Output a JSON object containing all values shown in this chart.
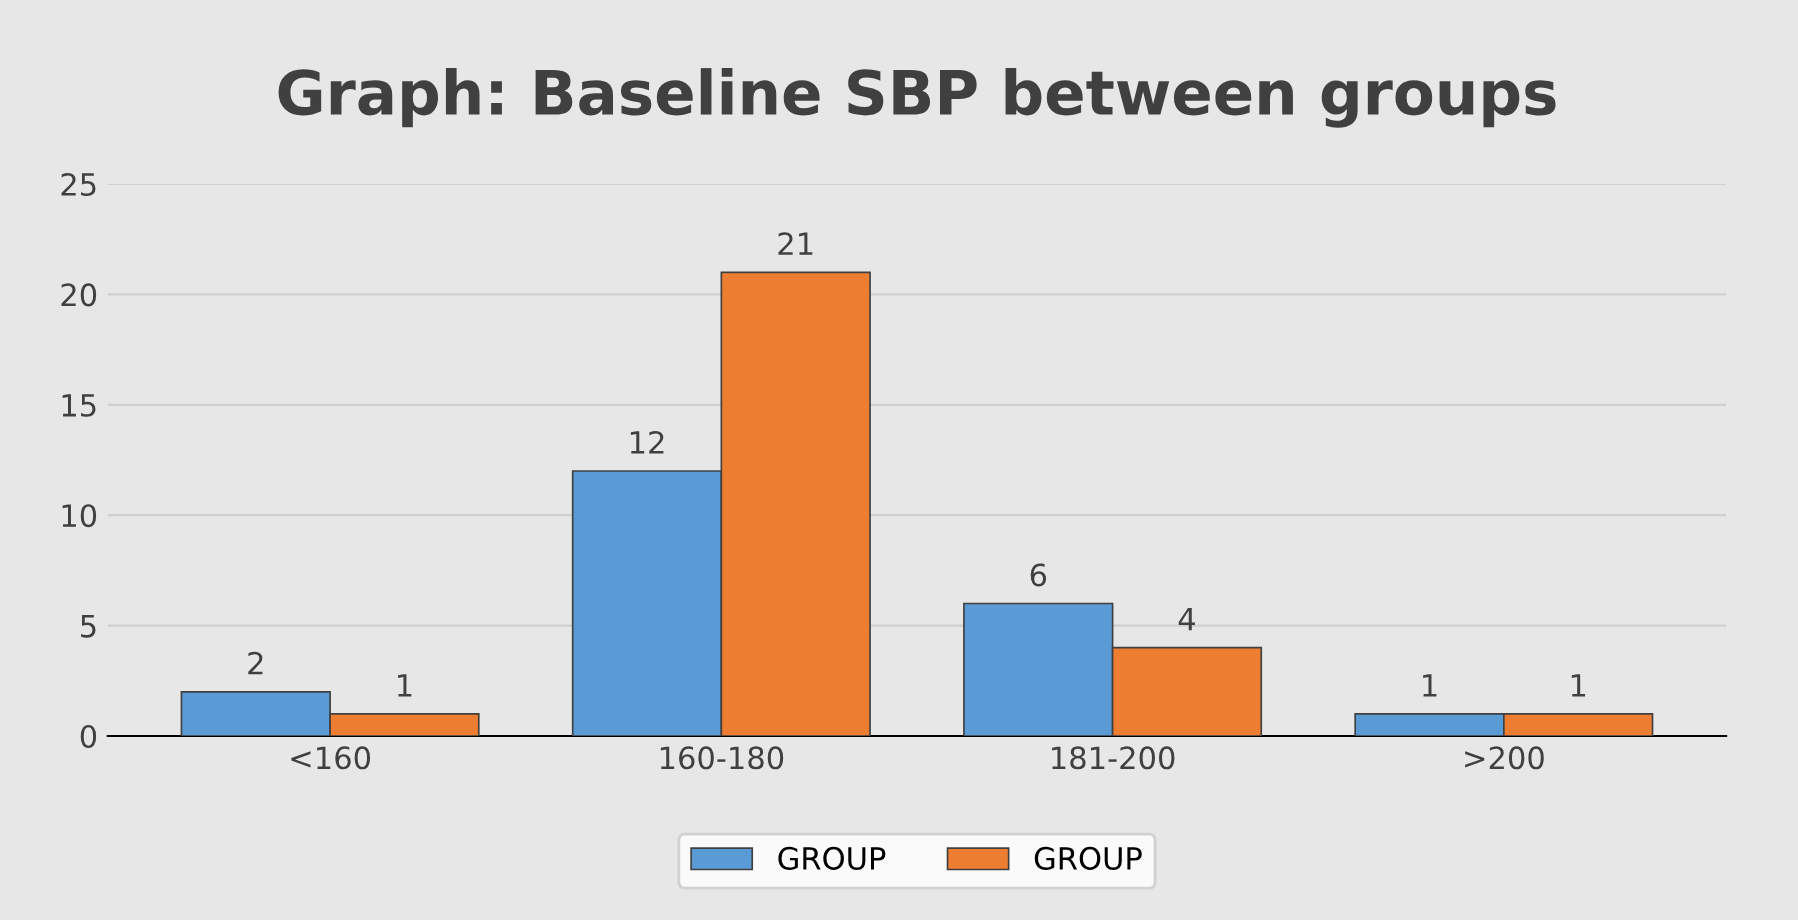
{
  "chart_data": {
    "type": "bar",
    "title": "Graph: Baseline SBP between groups",
    "categories": [
      "<160",
      "160-180",
      "181-200",
      ">200"
    ],
    "series": [
      {
        "name": "GROUP",
        "color": "#5b9bd5",
        "values": [
          2,
          12,
          6,
          1
        ]
      },
      {
        "name": "GROUP",
        "color": "#ed7d31",
        "values": [
          1,
          21,
          4,
          1
        ]
      }
    ],
    "ylim": [
      0,
      25
    ],
    "yticks": [
      0,
      5,
      10,
      15,
      20,
      25
    ],
    "grid": "y",
    "legend": "bottom",
    "data_labels": true
  }
}
